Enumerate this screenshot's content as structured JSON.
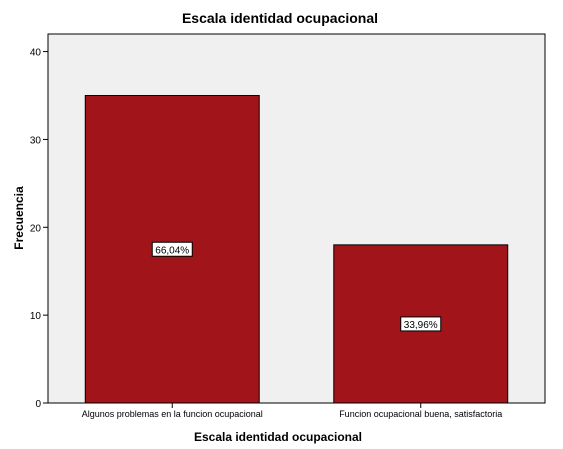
{
  "chart_data": {
    "type": "bar",
    "title": "Escala identidad ocupacional",
    "xlabel": "Escala identidad ocupacional",
    "ylabel": "Frecuencia",
    "categories": [
      "Algunos problemas en la funcion ocupacional",
      "Funcion ocupacional buena, satisfactoria"
    ],
    "values": [
      35,
      18
    ],
    "data_labels": [
      "66,04%",
      "33,96%"
    ],
    "ylim": [
      0,
      42
    ],
    "yticks": [
      0,
      10,
      20,
      30,
      40
    ],
    "grid": false,
    "legend": "none",
    "colors": {
      "bar": "#a0141a",
      "plot_background": "#f0f0f0",
      "axis": "#000000"
    }
  }
}
